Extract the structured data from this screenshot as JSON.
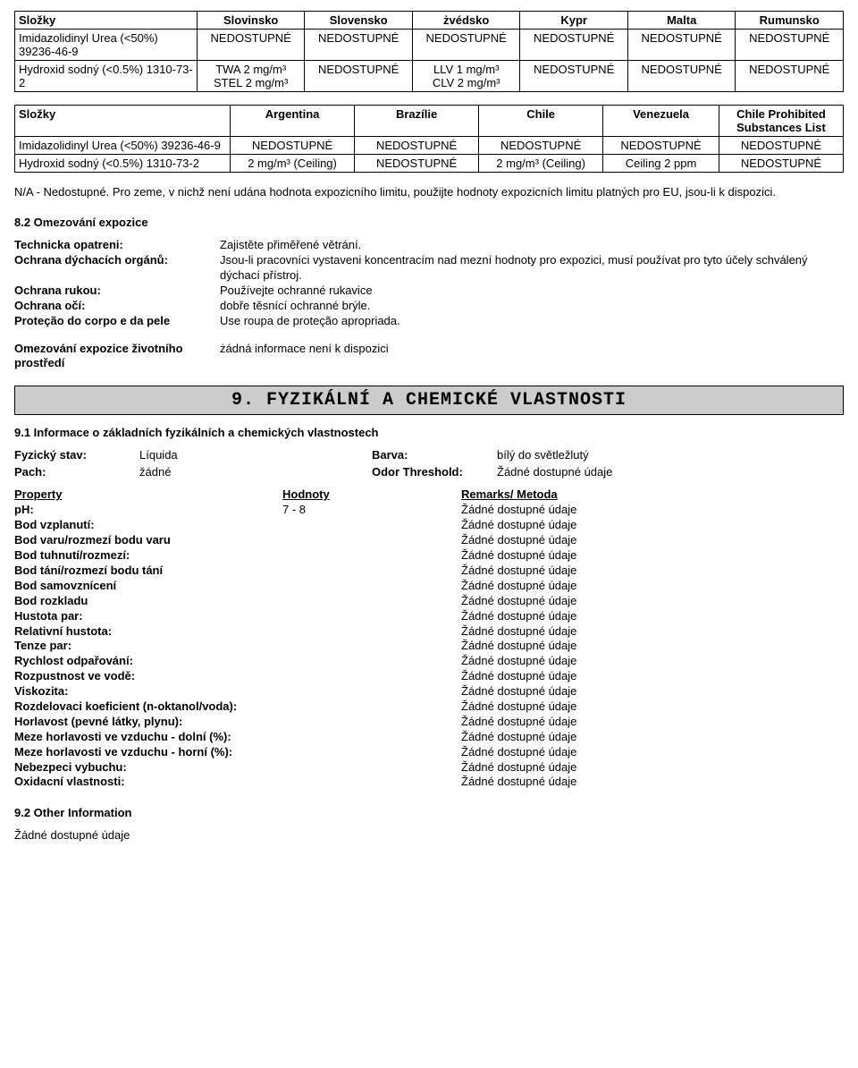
{
  "table1": {
    "headers": [
      "Složky",
      "Slovinsko",
      "Slovensko",
      "żvédsko",
      "Kypr",
      "Malta",
      "Rumunsko"
    ],
    "col_widths": [
      "22%",
      "13%",
      "13%",
      "13%",
      "13%",
      "13%",
      "13%"
    ],
    "rows": [
      {
        "c0": "Imidazolidinyl Urea (<50%) 39236-46-9",
        "c1": "NEDOSTUPNÉ",
        "c2": "NEDOSTUPNÉ",
        "c3": "NEDOSTUPNÉ",
        "c4": "NEDOSTUPNÉ",
        "c5": "NEDOSTUPNÉ",
        "c6": "NEDOSTUPNÉ"
      },
      {
        "c0": "Hydroxid sodný (<0.5%) 1310-73-2",
        "c1": "TWA  2 mg/m³\nSTEL  2 mg/m³",
        "c2": "NEDOSTUPNÉ",
        "c3": "LLV  1 mg/m³\nCLV  2 mg/m³",
        "c4": "NEDOSTUPNÉ",
        "c5": "NEDOSTUPNÉ",
        "c6": "NEDOSTUPNÉ"
      }
    ]
  },
  "table2": {
    "headers": [
      "Složky",
      "Argentina",
      "Brazílie",
      "Chile",
      "Venezuela",
      "Chile Prohibited Substances List"
    ],
    "col_widths": [
      "26%",
      "15%",
      "15%",
      "15%",
      "14%",
      "15%"
    ],
    "rows": [
      {
        "c0": "Imidazolidinyl Urea (<50%) 39236-46-9",
        "c1": "NEDOSTUPNÉ",
        "c2": "NEDOSTUPNÉ",
        "c3": "NEDOSTUPNÉ",
        "c4": "NEDOSTUPNÉ",
        "c5": "NEDOSTUPNÉ"
      },
      {
        "c0": "Hydroxid sodný (<0.5%) 1310-73-2",
        "c1": "2 mg/m³ (Ceiling)",
        "c2": "NEDOSTUPNÉ",
        "c3": "2 mg/m³ (Ceiling)",
        "c4": "Ceiling  2 ppm",
        "c5": "NEDOSTUPNÉ"
      }
    ]
  },
  "note": "N/A - Nedostupné.  Pro zeme, v nichž není udána hodnota expozicního limitu, použijte hodnoty expozicních limitu platných pro EU, jsou-li k dispozici.",
  "sec82": {
    "title": "8.2 Omezování expozice",
    "items": [
      {
        "k": "Technicka opatreni:",
        "v": "Zajistěte přiměřené větrání."
      },
      {
        "k": "Ochrana dýchacích orgánů:",
        "v": "Jsou-li pracovníci vystaveni koncentracím nad mezní hodnoty pro expozici, musí používat pro tyto účely schválený dýchací přístroj."
      },
      {
        "k": "Ochrana rukou:",
        "v": "Používejte ochranné rukavice"
      },
      {
        "k": "Ochrana očí:",
        "v": "dobře těsnící ochranné brýle."
      },
      {
        "k": "Proteção do corpo e da pele",
        "v": "Use roupa de proteção apropriada."
      }
    ],
    "items2": [
      {
        "k": "Omezování expozice životního prostředí",
        "v": "żádná informace není k dispozici"
      }
    ]
  },
  "banner": "9. FYZIKÁLNÍ A CHEMICKÉ VLASTNOSTI",
  "sec91": {
    "title": "9.1 Informace o základních fyzikálních a chemických vlastnostech",
    "pairs_row1": [
      {
        "k": "Fyzický stav:",
        "v": "Líquida"
      },
      {
        "k": "Barva:",
        "v": "bílý do světležlutý"
      }
    ],
    "pairs_row2": [
      {
        "k": "Pach:",
        "v": "žádné"
      },
      {
        "k": "Odor Threshold:",
        "v": "Žádné dostupné údaje"
      }
    ],
    "props_header": [
      "Property",
      "Hodnoty",
      "Remarks/ Metoda"
    ],
    "props": [
      {
        "p": "pH:",
        "h": "7 - 8",
        "r": "Žádné dostupné údaje"
      },
      {
        "p": "Bod vzplanutí:",
        "h": "",
        "r": "Žádné dostupné údaje"
      },
      {
        "p": "Bod varu/rozmezí bodu varu",
        "h": "",
        "r": "Žádné dostupné údaje"
      },
      {
        "p": "Bod tuhnutí/rozmezí:",
        "h": "",
        "r": "Žádné dostupné údaje"
      },
      {
        "p": "Bod tání/rozmezí bodu tání",
        "h": "",
        "r": "Žádné dostupné údaje"
      },
      {
        "p": "Bod samovznícení",
        "h": "",
        "r": "Žádné dostupné údaje"
      },
      {
        "p": "Bod rozkladu",
        "h": "",
        "r": "Žádné dostupné údaje"
      },
      {
        "p": "Hustota par:",
        "h": "",
        "r": "Žádné dostupné údaje"
      },
      {
        "p": "Relativní hustota:",
        "h": "",
        "r": "Žádné dostupné údaje"
      },
      {
        "p": "Tenze par:",
        "h": "",
        "r": "Žádné dostupné údaje"
      },
      {
        "p": "Rychlost odpařování:",
        "h": "",
        "r": "Žádné dostupné údaje"
      },
      {
        "p": "Rozpustnost ve vodě:",
        "h": "",
        "r": "Žádné dostupné údaje"
      },
      {
        "p": "Viskozita:",
        "h": "",
        "r": "Žádné dostupné údaje"
      },
      {
        "p": "Rozdelovaci koeficient (n-oktanol/voda):",
        "h": "",
        "r": "Žádné dostupné údaje"
      },
      {
        "p": "Horlavost (pevné látky, plynu):",
        "h": "",
        "r": "Žádné dostupné údaje"
      },
      {
        "p": "Meze horlavosti ve vzduchu - dolní (%):",
        "h": "",
        "r": "Žádné dostupné údaje"
      },
      {
        "p": "Meze horlavosti ve vzduchu - horní (%):",
        "h": "",
        "r": "Žádné dostupné údaje"
      },
      {
        "p": "Nebezpeci vybuchu:",
        "h": "",
        "r": "Žádné dostupné údaje"
      },
      {
        "p": "Oxidacní vlastnosti:",
        "h": "",
        "r": "Žádné dostupné údaje"
      }
    ]
  },
  "sec92": {
    "title": "9.2 Other Information",
    "text": "Žádné dostupné údaje"
  }
}
